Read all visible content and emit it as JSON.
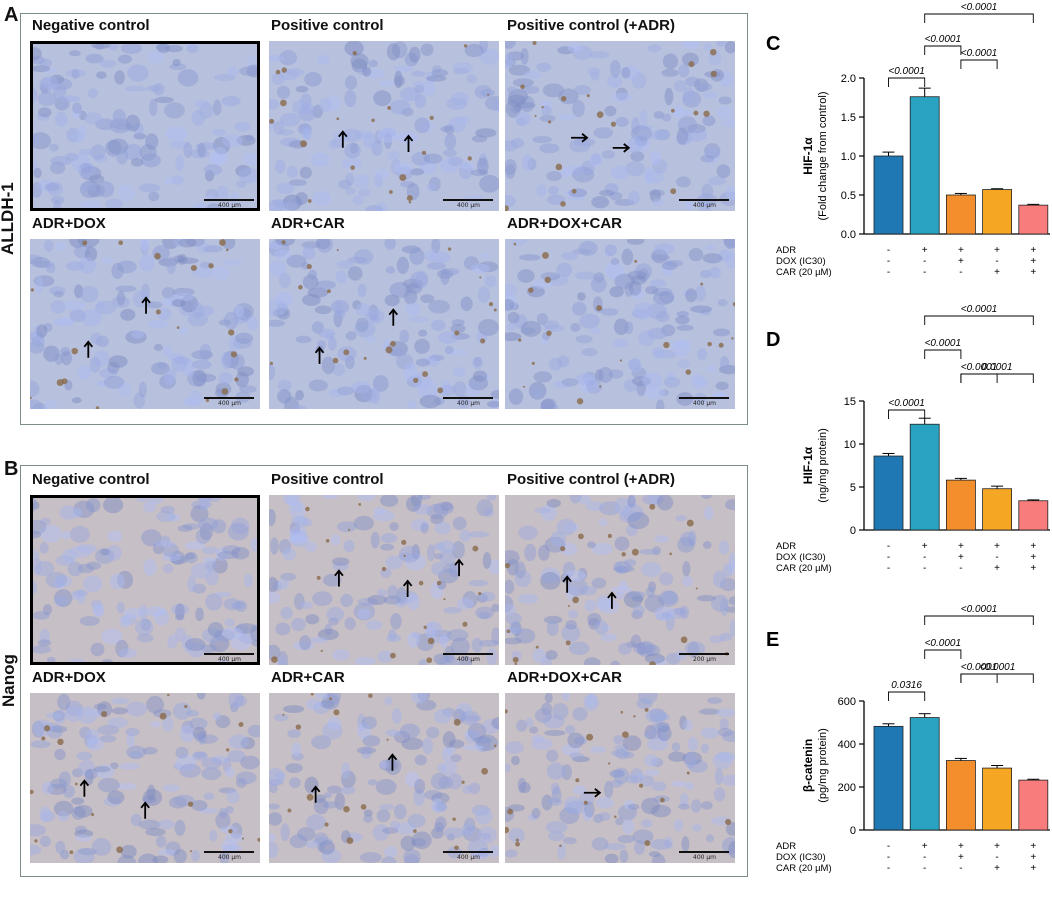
{
  "panelA": {
    "letter": "A",
    "stain": "ALLDH-1",
    "tiles": [
      {
        "title": "Negative control",
        "scale": "400 µm",
        "highlight": true,
        "arrows": []
      },
      {
        "title": "Positive control",
        "scale": "400 µm",
        "highlight": false,
        "arrows": [
          "up",
          "up"
        ]
      },
      {
        "title": "Positive control (+ADR)",
        "scale": "400 µm",
        "highlight": false,
        "arrows": [
          "right",
          "right"
        ]
      },
      {
        "title": "ADR+DOX",
        "scale": "400 µm",
        "highlight": false,
        "arrows": [
          "up",
          "up"
        ]
      },
      {
        "title": "ADR+CAR",
        "scale": "400 µm",
        "highlight": false,
        "arrows": [
          "up",
          "up"
        ]
      },
      {
        "title": "ADR+DOX+CAR",
        "scale": "400 µm",
        "highlight": false,
        "arrows": []
      }
    ]
  },
  "panelB": {
    "letter": "B",
    "stain": "Nanog",
    "tiles": [
      {
        "title": "Negative control",
        "scale": "400 µm",
        "highlight": true,
        "arrows": []
      },
      {
        "title": "Positive control",
        "scale": "400 µm",
        "highlight": false,
        "arrows": [
          "up",
          "up",
          "up"
        ]
      },
      {
        "title": "Positive control (+ADR)",
        "scale": "200 µm",
        "highlight": false,
        "arrows": [
          "up",
          "up"
        ]
      },
      {
        "title": "ADR+DOX",
        "scale": "400 µm",
        "highlight": false,
        "arrows": [
          "up",
          "up"
        ]
      },
      {
        "title": "ADR+CAR",
        "scale": "400 µm",
        "highlight": false,
        "arrows": [
          "up",
          "up"
        ]
      },
      {
        "title": "ADR+DOX+CAR",
        "scale": "400 µm",
        "highlight": false,
        "arrows": [
          "right"
        ]
      }
    ]
  },
  "colors": {
    "bars": [
      "#1f77b4",
      "#2aa3c2",
      "#f28e2b",
      "#f5a623",
      "#f87c7c"
    ],
    "micro_bg": "#b7c0dc",
    "micro_stain": "#8a6a4a",
    "nanog_bg": "#c7bfc6"
  },
  "group_rows": {
    "labels": [
      "ADR",
      "DOX (IC30)",
      "CAR (20 µM)"
    ],
    "signs": [
      [
        "-",
        "+",
        "+",
        "+",
        "+"
      ],
      [
        "-",
        "-",
        "+",
        "-",
        "+"
      ],
      [
        "-",
        "-",
        "-",
        "+",
        "+"
      ]
    ]
  },
  "chart_data": [
    {
      "letter": "C",
      "type": "bar",
      "ylabel": "HIF-1α",
      "ysub": "(Fold change from control)",
      "ylim": [
        0,
        2.0
      ],
      "yticks": [
        "0.0",
        "0.5",
        "1.0",
        "1.5",
        "2.0"
      ],
      "values": [
        1.0,
        1.76,
        0.5,
        0.57,
        0.37
      ],
      "errors": [
        0.05,
        0.11,
        0.02,
        0.01,
        0.01
      ],
      "pvalues": [
        "<0.0001",
        "<0.0001",
        "<0.0001",
        "<0.0001"
      ]
    },
    {
      "letter": "D",
      "type": "bar",
      "ylabel": "HIF-1α",
      "ysub": "(ng/mg protein)",
      "ylim": [
        0,
        15
      ],
      "yticks": [
        "0",
        "5",
        "10",
        "15"
      ],
      "values": [
        8.6,
        12.3,
        5.8,
        4.8,
        3.4
      ],
      "errors": [
        0.3,
        0.7,
        0.2,
        0.3,
        0.1
      ],
      "pvalues": [
        "<0.0001",
        "<0.0001",
        "<0.0001",
        "<0.0001",
        "0.0001"
      ]
    },
    {
      "letter": "E",
      "type": "bar",
      "ylabel": "β-catenin",
      "ysub": "(pg/mg protein)",
      "ylim": [
        0,
        600
      ],
      "yticks": [
        "0",
        "200",
        "400",
        "600"
      ],
      "values": [
        482,
        523,
        323,
        288,
        232
      ],
      "errors": [
        12,
        18,
        10,
        12,
        4
      ],
      "pvalues": [
        "0.0316",
        "<0.0001",
        "<0.0001",
        "<0.0001",
        "<0.0001"
      ]
    }
  ]
}
